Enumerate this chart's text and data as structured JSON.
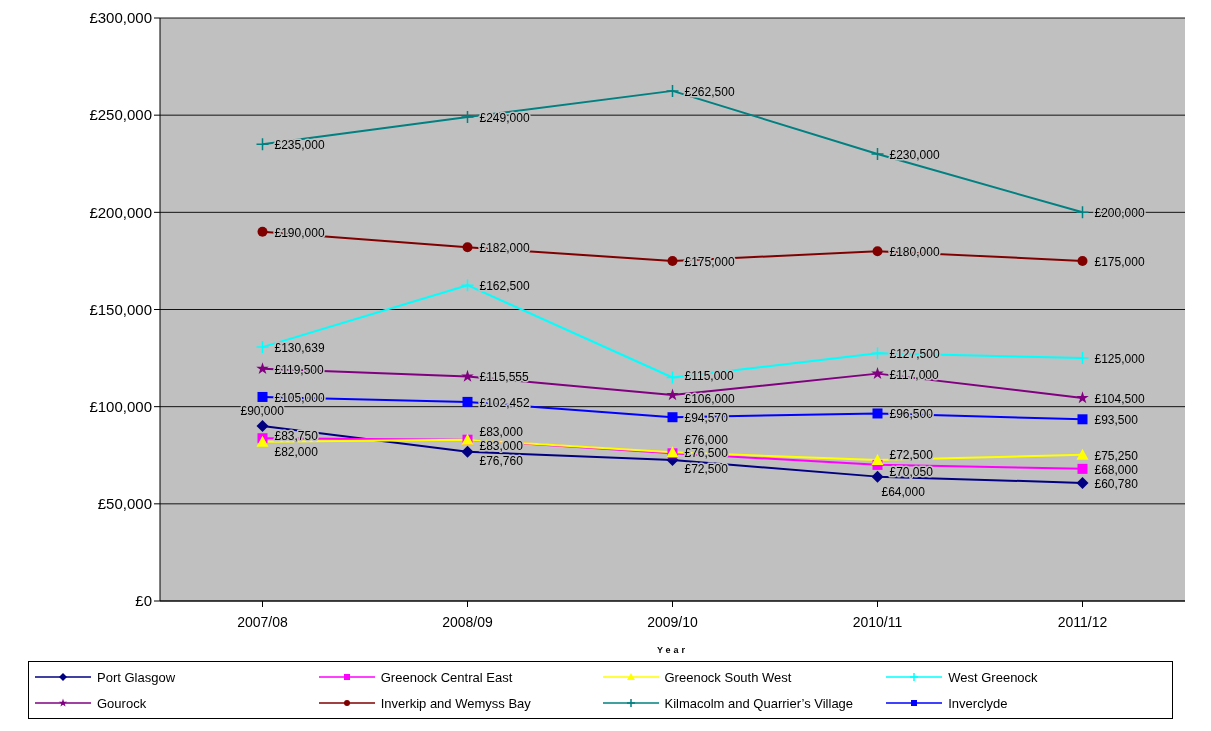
{
  "chart_data": {
    "type": "line",
    "xlabel": "Year",
    "categories": [
      "2007/08",
      "2008/09",
      "2009/10",
      "2010/11",
      "2011/12"
    ],
    "series": [
      {
        "name": "Port Glasgow",
        "color": "#000080",
        "marker": "diamond",
        "values": [
          90000,
          76760,
          72500,
          64000,
          60780
        ],
        "value_labels": [
          "£90,000",
          "£76,760",
          "£72,500",
          "£64,000",
          "£60,780"
        ]
      },
      {
        "name": "Greenock Central East",
        "color": "#ff00ff",
        "marker": "square",
        "values": [
          83750,
          83000,
          76000,
          70050,
          68000
        ],
        "value_labels": [
          "£83,750",
          "£83,000",
          "£76,000",
          "£70,050",
          "£68,000"
        ]
      },
      {
        "name": "Greenock South West",
        "color": "#ffff00",
        "marker": "triangle",
        "values": [
          82000,
          83000,
          76500,
          72500,
          75250
        ],
        "value_labels": [
          "£82,000",
          "£83,000",
          "£76,500",
          "£72,500",
          "£75,250"
        ]
      },
      {
        "name": "West Greenock",
        "color": "#00ffff",
        "marker": "cross",
        "values": [
          130639,
          162500,
          115000,
          127500,
          125000
        ],
        "value_labels": [
          "£130,639",
          "£162,500",
          "£115,000",
          "£127,500",
          "£125,000"
        ]
      },
      {
        "name": "Gourock",
        "color": "#800080",
        "marker": "star",
        "values": [
          119500,
          115555,
          106000,
          117000,
          104500
        ],
        "value_labels": [
          "£119,500",
          "£115,555",
          "£106,000",
          "£117,000",
          "£104,500"
        ]
      },
      {
        "name": "Inverkip and Wemyss Bay",
        "color": "#800000",
        "marker": "circle",
        "values": [
          190000,
          182000,
          175000,
          180000,
          175000
        ],
        "value_labels": [
          "£190,000",
          "£182,000",
          "£175,000",
          "£180,000",
          "£175,000"
        ]
      },
      {
        "name": "Kilmacolm and Quarrier’s Village",
        "color": "#008080",
        "marker": "cross",
        "values": [
          235000,
          249000,
          262500,
          230000,
          200000
        ],
        "value_labels": [
          "£235,000",
          "£249,000",
          "£262,500",
          "£230,000",
          "£200,000"
        ]
      },
      {
        "name": "Inverclyde",
        "color": "#0000ff",
        "marker": "square",
        "values": [
          105000,
          102452,
          94570,
          96500,
          93500
        ],
        "value_labels": [
          "£105,000",
          "£102,452",
          "£94,570",
          "£96,500",
          "£93,500"
        ]
      }
    ],
    "ylim": [
      0,
      300000
    ],
    "yticks": [
      {
        "value": 0,
        "label": "£0"
      },
      {
        "value": 50000,
        "label": "£50,000"
      },
      {
        "value": 100000,
        "label": "£100,000"
      },
      {
        "value": 150000,
        "label": "£150,000"
      },
      {
        "value": 200000,
        "label": "£200,000"
      },
      {
        "value": 250000,
        "label": "£250,000"
      },
      {
        "value": 300000,
        "label": "£300,000"
      }
    ],
    "grid": "y",
    "legend": "bottom",
    "line_style": "solid"
  }
}
